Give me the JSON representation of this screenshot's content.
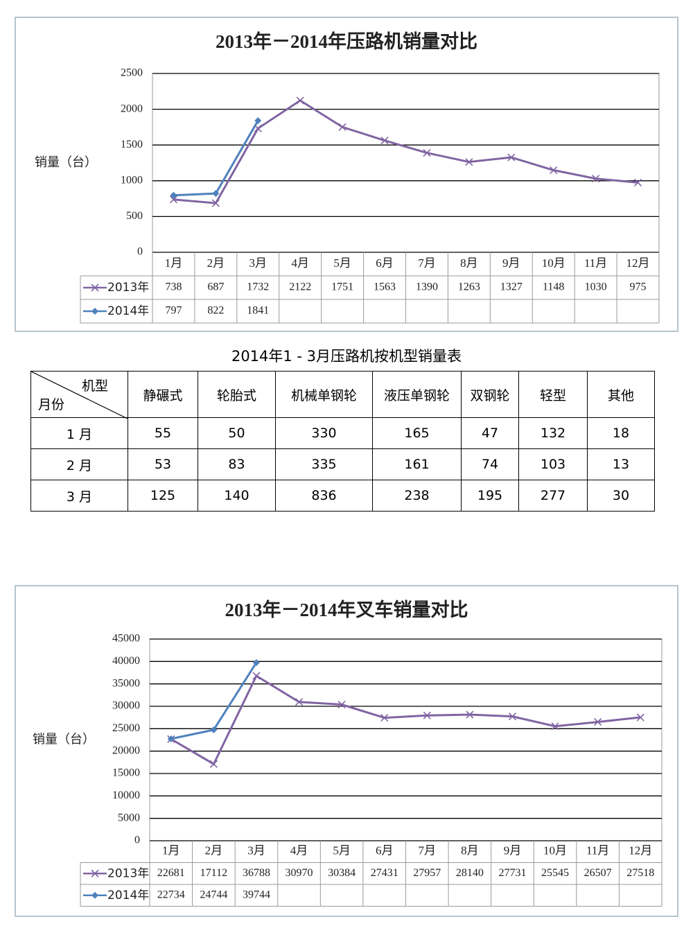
{
  "chart_data": [
    {
      "type": "line",
      "title": "2013年－2014年压路机销量对比",
      "y_label": "销量（台）",
      "categories": [
        "1月",
        "2月",
        "3月",
        "4月",
        "5月",
        "6月",
        "7月",
        "8月",
        "9月",
        "10月",
        "11月",
        "12月"
      ],
      "series": [
        {
          "name": "2013年",
          "color": "#8064a2",
          "marker": "x",
          "values": [
            738,
            687,
            1732,
            2122,
            1751,
            1563,
            1390,
            1263,
            1327,
            1148,
            1030,
            975
          ]
        },
        {
          "name": "2014年",
          "color": "#4f81bd",
          "marker": "diamond",
          "values": [
            797,
            822,
            1841,
            null,
            null,
            null,
            null,
            null,
            null,
            null,
            null,
            null
          ]
        }
      ],
      "ylim": [
        0,
        2500
      ],
      "yticks": [
        0,
        500,
        1000,
        1500,
        2000,
        2500
      ],
      "grid": true
    },
    {
      "type": "line",
      "title": "2013年－2014年叉车销量对比",
      "y_label": "销量（台）",
      "categories": [
        "1月",
        "2月",
        "3月",
        "4月",
        "5月",
        "6月",
        "7月",
        "8月",
        "9月",
        "10月",
        "11月",
        "12月"
      ],
      "series": [
        {
          "name": "2013年",
          "color": "#8064a2",
          "marker": "x",
          "values": [
            22681,
            17112,
            36788,
            30970,
            30384,
            27431,
            27957,
            28140,
            27731,
            25545,
            26507,
            27518
          ]
        },
        {
          "name": "2014年",
          "color": "#4f81bd",
          "marker": "diamond",
          "values": [
            22734,
            24744,
            39744,
            null,
            null,
            null,
            null,
            null,
            null,
            null,
            null,
            null
          ]
        }
      ],
      "ylim": [
        0,
        45000
      ],
      "yticks": [
        0,
        5000,
        10000,
        15000,
        20000,
        25000,
        30000,
        35000,
        40000,
        45000
      ],
      "grid": true
    }
  ],
  "table": {
    "title": "2014年1 - 3月压路机按机型销量表",
    "corner_top": "机型",
    "corner_left": "月份",
    "columns": [
      "静碾式",
      "轮胎式",
      "机械单钢轮",
      "液压单钢轮",
      "双钢轮",
      "轻型",
      "其他"
    ],
    "rows": [
      {
        "label": "1 月",
        "values": [
          55,
          50,
          330,
          165,
          47,
          132,
          18
        ]
      },
      {
        "label": "2 月",
        "values": [
          53,
          83,
          335,
          161,
          74,
          103,
          13
        ]
      },
      {
        "label": "3 月",
        "values": [
          125,
          140,
          836,
          238,
          195,
          277,
          30
        ]
      }
    ]
  }
}
